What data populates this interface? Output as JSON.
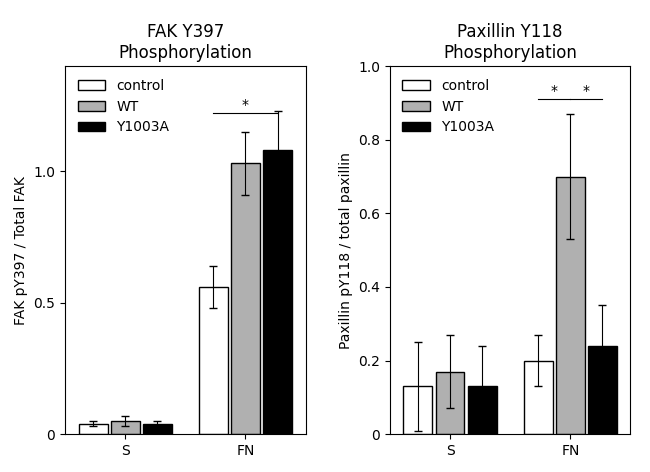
{
  "chart_data": [
    {
      "type": "bar",
      "title": "FAK Y397\nPhosphorylation",
      "y_label": "FAK pY397 / Total FAK",
      "categories": [
        "S",
        "FN"
      ],
      "series": [
        {
          "name": "control",
          "color": "white",
          "values": [
            0.04,
            0.56
          ],
          "errors": [
            0.01,
            0.08
          ]
        },
        {
          "name": "WT",
          "color": "#b0b0b0",
          "values": [
            0.05,
            1.03
          ],
          "errors": [
            0.02,
            0.12
          ]
        },
        {
          "name": "Y1003A",
          "color": "black",
          "values": [
            0.04,
            1.08
          ],
          "errors": [
            0.01,
            0.15
          ]
        }
      ],
      "ylim": [
        0,
        1.4
      ],
      "yticks": [
        0,
        0.5,
        {
          "value": 1.0,
          "label": "1.0"
        }
      ],
      "legend": "upper left",
      "annotations": [
        {
          "text": "*",
          "category": "FN",
          "from": "control",
          "to": "Y1003A",
          "y": 1.22
        }
      ]
    },
    {
      "type": "bar",
      "title": "Paxillin Y118\nPhosphorylation",
      "y_label": "Paxillin pY118 / total paxillin",
      "categories": [
        "S",
        "FN"
      ],
      "series": [
        {
          "name": "control",
          "color": "white",
          "values": [
            0.13,
            0.2
          ],
          "errors": [
            0.12,
            0.07
          ]
        },
        {
          "name": "WT",
          "color": "#b0b0b0",
          "values": [
            0.17,
            0.7
          ],
          "errors": [
            0.1,
            0.17
          ]
        },
        {
          "name": "Y1003A",
          "color": "black",
          "values": [
            0.13,
            0.24
          ],
          "errors": [
            0.11,
            0.11
          ]
        }
      ],
      "ylim": [
        0,
        1.0
      ],
      "yticks": [
        0,
        0.2,
        0.4,
        0.6,
        0.8,
        {
          "value": 1.0,
          "label": "1.0"
        }
      ],
      "legend": "upper left",
      "annotations": [
        {
          "text": "*",
          "category": "FN",
          "from": "control",
          "to": "WT",
          "y": 0.91
        },
        {
          "text": "*",
          "category": "FN",
          "from": "WT",
          "to": "Y1003A",
          "y": 0.91
        }
      ]
    }
  ]
}
